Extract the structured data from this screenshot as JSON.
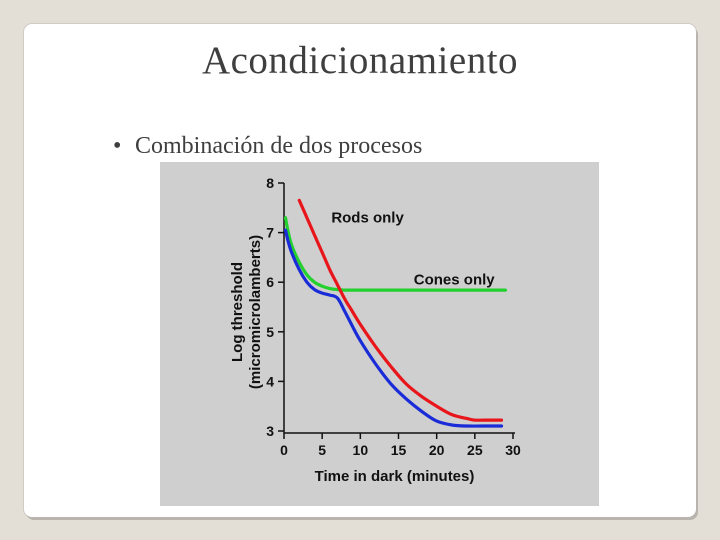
{
  "slide": {
    "title": "Acondicionamiento",
    "bullet_symbol": "•",
    "bullet_text": "Combinación de dos procesos"
  },
  "chart_data": {
    "type": "line",
    "title": "",
    "xlabel": "Time in dark (minutes)",
    "ylabel_line1": "Log threshold",
    "ylabel_line2": "(micromicrolamberts)",
    "xlim": [
      0,
      30
    ],
    "ylim": [
      3,
      8
    ],
    "xticks": [
      0,
      5,
      10,
      15,
      20,
      25,
      30
    ],
    "yticks": [
      3,
      4,
      5,
      6,
      7,
      8
    ],
    "grid": false,
    "series": [
      {
        "name": "Rods only",
        "color": "#e8161b",
        "x": [
          2,
          3,
          4,
          5,
          6,
          7,
          8,
          9,
          10,
          12,
          14,
          16,
          18,
          20,
          22,
          24,
          25,
          27,
          28.5
        ],
        "y": [
          7.65,
          7.3,
          6.95,
          6.6,
          6.25,
          5.95,
          5.65,
          5.4,
          5.15,
          4.7,
          4.3,
          3.95,
          3.7,
          3.5,
          3.33,
          3.25,
          3.22,
          3.22,
          3.22
        ]
      },
      {
        "name": "Cones only",
        "color": "#22d12e",
        "x": [
          0.2,
          0.5,
          1,
          2,
          3,
          4,
          5,
          6,
          7,
          8,
          10,
          15,
          20,
          25,
          29
        ],
        "y": [
          7.3,
          7.05,
          6.75,
          6.4,
          6.15,
          6.0,
          5.92,
          5.87,
          5.85,
          5.84,
          5.84,
          5.84,
          5.84,
          5.84,
          5.84
        ]
      },
      {
        "name": "",
        "color": "#1a2bd8",
        "x": [
          0.2,
          0.5,
          1,
          2,
          3,
          4,
          5,
          6,
          7,
          8,
          9,
          10,
          12,
          14,
          16,
          18,
          20,
          22,
          24,
          26,
          28.5
        ],
        "y": [
          7.05,
          6.85,
          6.6,
          6.25,
          6.0,
          5.85,
          5.78,
          5.74,
          5.68,
          5.4,
          5.1,
          4.82,
          4.35,
          3.95,
          3.65,
          3.4,
          3.2,
          3.12,
          3.1,
          3.1,
          3.1
        ]
      }
    ],
    "annotations": [
      {
        "text": "Rods only",
        "x": 6.2,
        "y": 7.2
      },
      {
        "text": "Cones only",
        "x": 17,
        "y": 5.95
      }
    ]
  }
}
